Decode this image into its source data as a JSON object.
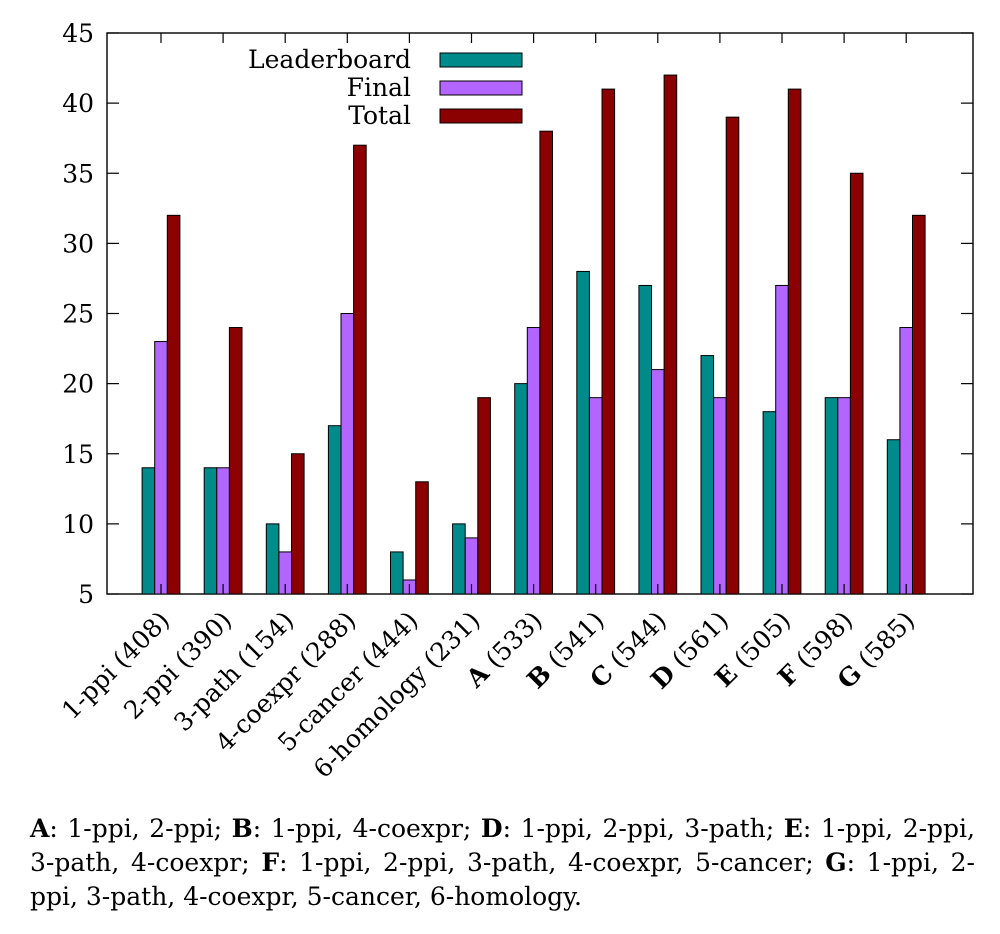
{
  "chart_data": {
    "type": "bar",
    "categories": [
      {
        "label": "1-ppi",
        "bold_label": "",
        "count": "(408)"
      },
      {
        "label": "2-ppi",
        "bold_label": "",
        "count": "(390)"
      },
      {
        "label": "3-path",
        "bold_label": "",
        "count": "(154)"
      },
      {
        "label": "4-coexpr",
        "bold_label": "",
        "count": "(288)"
      },
      {
        "label": "5-cancer",
        "bold_label": "",
        "count": "(444)"
      },
      {
        "label": "6-homology",
        "bold_label": "",
        "count": "(231)"
      },
      {
        "label": "",
        "bold_label": "A",
        "count": "(533)"
      },
      {
        "label": "",
        "bold_label": "B",
        "count": "(541)"
      },
      {
        "label": "",
        "bold_label": "C",
        "count": "(544)"
      },
      {
        "label": "",
        "bold_label": "D",
        "count": "(561)"
      },
      {
        "label": "",
        "bold_label": "E",
        "count": "(505)"
      },
      {
        "label": "",
        "bold_label": "F",
        "count": "(598)"
      },
      {
        "label": "",
        "bold_label": "G",
        "count": "(585)"
      }
    ],
    "series": [
      {
        "name": "Leaderboard",
        "color": "#008b8b",
        "values": [
          14,
          14,
          10,
          17,
          8,
          10,
          20,
          28,
          27,
          22,
          18,
          19,
          16
        ]
      },
      {
        "name": "Final",
        "color": "#b266ff",
        "values": [
          23,
          14,
          8,
          25,
          6,
          9,
          24,
          19,
          21,
          19,
          27,
          19,
          24
        ]
      },
      {
        "name": "Total",
        "color": "#8b0000",
        "values": [
          32,
          24,
          15,
          37,
          13,
          19,
          38,
          41,
          42,
          39,
          41,
          35,
          32
        ]
      }
    ],
    "ylim": [
      5,
      45
    ],
    "yticks": [
      5,
      10,
      15,
      20,
      25,
      30,
      35,
      40,
      45
    ],
    "legend_position": "top-left",
    "grid": false
  },
  "caption": {
    "segments": [
      {
        "text": "A",
        "bold": true
      },
      {
        "text": ": 1-ppi, 2-ppi; ",
        "bold": false
      },
      {
        "text": "B",
        "bold": true
      },
      {
        "text": ": 1-ppi, 4-coexpr; ",
        "bold": false
      },
      {
        "text": "D",
        "bold": true
      },
      {
        "text": ": 1-ppi, 2-ppi, 3-path; ",
        "bold": false
      },
      {
        "text": "E",
        "bold": true
      },
      {
        "text": ": 1-ppi, 2-ppi, 3-path, 4-coexpr; ",
        "bold": false
      },
      {
        "text": "F",
        "bold": true
      },
      {
        "text": ": 1-ppi, 2-ppi, 3-path, 4-coexpr, 5-cancer; ",
        "bold": false
      },
      {
        "text": "G",
        "bold": true
      },
      {
        "text": ": 1-ppi, 2-ppi, 3-path, 4-coexpr, 5-cancer, 6-homology.",
        "bold": false
      }
    ]
  }
}
